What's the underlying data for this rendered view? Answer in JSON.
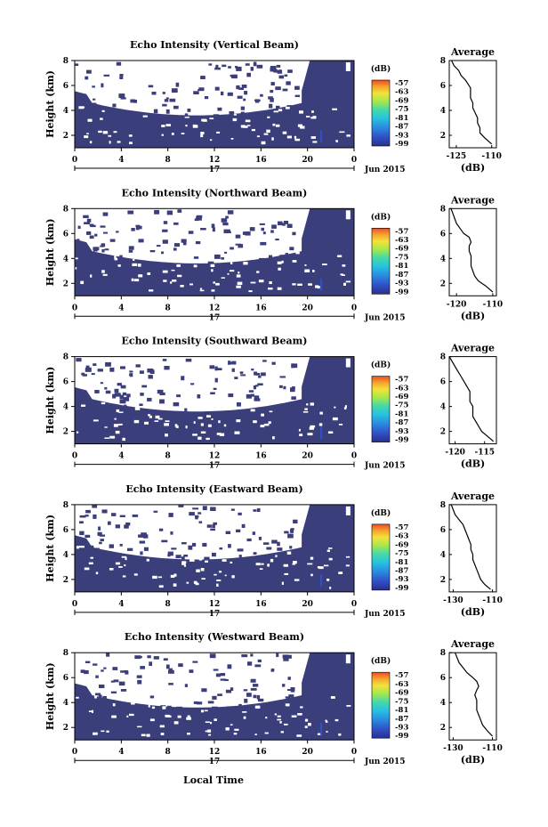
{
  "figure": {
    "xlabel_bottom": "Local Time",
    "date_label": "Jun 2015",
    "day_label": "17",
    "x_ticks": [
      "0",
      "4",
      "8",
      "12",
      "16",
      "20",
      "0"
    ],
    "y_ticks": [
      "2",
      "4",
      "6",
      "8"
    ],
    "ylabel": "Height (km)",
    "colorbar_title": "(dB)",
    "colorbar_ticks": [
      "-57",
      "-63",
      "-69",
      "-75",
      "-81",
      "-87",
      "-93",
      "-99"
    ],
    "avg_title": "Average",
    "avg_xlabel": "(dB)"
  },
  "chart_data": [
    {
      "type": "heatmap",
      "title": "Echo Intensity (Vertical Beam)",
      "xlabel": "",
      "ylabel": "Height (km)",
      "xlim": [
        0,
        24
      ],
      "ylim": [
        1,
        8
      ],
      "colorbar": {
        "label": "(dB)",
        "range": [
          -99,
          -57
        ]
      },
      "profile": {
        "type": "line",
        "title": "Average",
        "xlabel": "(dB)",
        "x_ticks": [
          "-125",
          "-110"
        ],
        "xlim": [
          -128,
          -108
        ],
        "ylim": [
          1,
          8
        ],
        "x": [
          -127,
          -126,
          -124,
          -123,
          -121,
          -120,
          -119,
          -119,
          -119,
          -118,
          -118,
          -117,
          -116,
          -116,
          -115,
          -115,
          -113,
          -110
        ],
        "y": [
          8.0,
          7.6,
          7.2,
          6.8,
          6.4,
          6.1,
          5.8,
          5.4,
          5.0,
          4.6,
          4.2,
          3.8,
          3.4,
          3.0,
          2.6,
          2.2,
          1.8,
          1.3
        ]
      }
    },
    {
      "type": "heatmap",
      "title": "Echo Intensity (Northward Beam)",
      "xlabel": "",
      "ylabel": "Height (km)",
      "xlim": [
        0,
        24
      ],
      "ylim": [
        1,
        8
      ],
      "colorbar": {
        "label": "(dB)",
        "range": [
          -99,
          -57
        ]
      },
      "profile": {
        "type": "line",
        "title": "Average",
        "xlabel": "(dB)",
        "x_ticks": [
          "-120",
          "-110"
        ],
        "xlim": [
          -122,
          -109
        ],
        "ylim": [
          1,
          8
        ],
        "x": [
          -121.5,
          -121,
          -120.5,
          -120,
          -119,
          -118,
          -116.5,
          -116,
          -116.5,
          -116.5,
          -116,
          -116,
          -116,
          -115.5,
          -115,
          -114,
          -112,
          -110
        ],
        "y": [
          8.0,
          7.6,
          7.2,
          6.8,
          6.4,
          6.0,
          5.7,
          5.3,
          5.0,
          4.6,
          4.2,
          3.8,
          3.4,
          3.0,
          2.6,
          2.2,
          1.8,
          1.3
        ]
      }
    },
    {
      "type": "heatmap",
      "title": "Echo Intensity (Southward Beam)",
      "xlabel": "",
      "ylabel": "Height (km)",
      "xlim": [
        0,
        24
      ],
      "ylim": [
        1,
        8
      ],
      "colorbar": {
        "label": "(dB)",
        "range": [
          -99,
          -57
        ]
      },
      "profile": {
        "type": "line",
        "title": "Average",
        "xlabel": "(dB)",
        "x_ticks": [
          "-120",
          "-115"
        ],
        "xlim": [
          -121,
          -113
        ],
        "ylim": [
          1,
          8
        ],
        "x": [
          -121,
          -120.5,
          -120,
          -119.5,
          -119,
          -118.5,
          -118,
          -117.5,
          -117.5,
          -117.5,
          -117,
          -117,
          -117,
          -116.5,
          -116,
          -115.5,
          -114.5,
          -113.5
        ],
        "y": [
          8.0,
          7.6,
          7.2,
          6.8,
          6.4,
          6.0,
          5.6,
          5.2,
          4.8,
          4.4,
          4.0,
          3.6,
          3.2,
          2.8,
          2.4,
          2.0,
          1.6,
          1.2
        ]
      }
    },
    {
      "type": "heatmap",
      "title": "Echo Intensity (Eastward Beam)",
      "xlabel": "",
      "ylabel": "Height (km)",
      "xlim": [
        0,
        24
      ],
      "ylim": [
        1,
        8
      ],
      "colorbar": {
        "label": "(dB)",
        "range": [
          -99,
          -57
        ]
      },
      "profile": {
        "type": "line",
        "title": "Average",
        "xlabel": "(dB)",
        "x_ticks": [
          "-130",
          "-110"
        ],
        "xlim": [
          -132,
          -108
        ],
        "ylim": [
          1,
          8
        ],
        "x": [
          -131,
          -130,
          -129,
          -127,
          -125,
          -124,
          -123,
          -122,
          -121,
          -121,
          -120,
          -120,
          -119,
          -118,
          -117,
          -116,
          -114,
          -111
        ],
        "y": [
          8.0,
          7.6,
          7.2,
          6.8,
          6.4,
          6.0,
          5.6,
          5.2,
          4.8,
          4.4,
          4.0,
          3.6,
          3.2,
          2.8,
          2.4,
          2.0,
          1.6,
          1.2
        ]
      }
    },
    {
      "type": "heatmap",
      "title": "Echo Intensity (Westward Beam)",
      "xlabel": "Local Time",
      "ylabel": "Height (km)",
      "xlim": [
        0,
        24
      ],
      "ylim": [
        1,
        8
      ],
      "colorbar": {
        "label": "(dB)",
        "range": [
          -99,
          -57
        ]
      },
      "profile": {
        "type": "line",
        "title": "Average",
        "xlabel": "(dB)",
        "x_ticks": [
          "-130",
          "-110"
        ],
        "xlim": [
          -132,
          -108
        ],
        "ylim": [
          1,
          8
        ],
        "x": [
          -129,
          -128,
          -127,
          -125,
          -123,
          -120,
          -118,
          -117,
          -118,
          -119,
          -118,
          -118,
          -118,
          -117,
          -116,
          -115,
          -113,
          -110
        ],
        "y": [
          8.0,
          7.6,
          7.2,
          6.8,
          6.4,
          6.0,
          5.7,
          5.3,
          5.0,
          4.6,
          4.2,
          3.8,
          3.4,
          3.0,
          2.6,
          2.2,
          1.8,
          1.3
        ]
      }
    }
  ],
  "colors": {
    "background_field": "#3a3e7a",
    "colormap": [
      "#2a2f8e",
      "#2f52c8",
      "#2a8be0",
      "#27c2e0",
      "#45d9a8",
      "#a8e84a",
      "#f2e23a",
      "#f5a52c",
      "#ef4a25"
    ]
  }
}
